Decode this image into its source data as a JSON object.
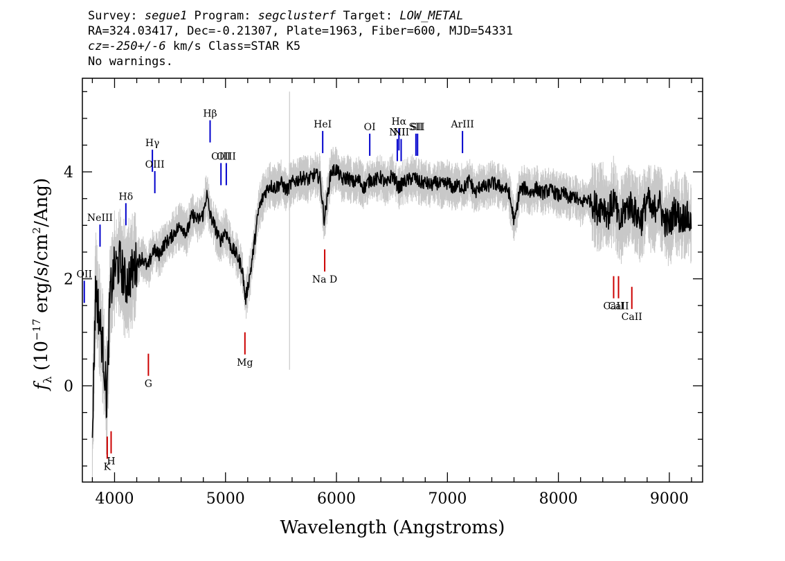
{
  "header": {
    "line1": {
      "survey_label": "Survey: ",
      "survey": "segue1",
      "program_label": " Program: ",
      "program": "segclusterf",
      "target_label": " Target: ",
      "target": "LOW_METAL"
    },
    "line2": "RA=324.03417, Dec=-0.21307, Plate=1963, Fiber=600, MJD=54331",
    "line3": {
      "cz": "cz=-250+/-6",
      "rest": " km/s Class=STAR K5"
    },
    "line4": "No warnings."
  },
  "colors": {
    "flux": "#000000",
    "error_band": "#c8c8c8",
    "emission_line": "#0000cc",
    "absorption_line": "#cc0000"
  },
  "chart_data": {
    "type": "line",
    "xlabel": "Wavelength (Angstroms)",
    "ylabel": "f_λ (10^-17 erg/s/cm²/Ang)",
    "xlim": [
      3710,
      9300
    ],
    "ylim": [
      -1.8,
      5.75
    ],
    "x_ticks": [
      {
        "value": 4000,
        "label": "4000"
      },
      {
        "value": 5000,
        "label": "5000"
      },
      {
        "value": 6000,
        "label": "6000"
      },
      {
        "value": 7000,
        "label": "7000"
      },
      {
        "value": 8000,
        "label": "8000"
      },
      {
        "value": 9000,
        "label": "9000"
      }
    ],
    "y_ticks": [
      {
        "value": 0,
        "label": "0"
      },
      {
        "value": 2,
        "label": "2"
      },
      {
        "value": 4,
        "label": "4"
      }
    ],
    "series": [
      {
        "x": [
          3800,
          3830,
          3860,
          3900,
          3930,
          3960,
          4000,
          4050,
          4100,
          4150,
          4200,
          4250,
          4300,
          4350,
          4400,
          4450,
          4500,
          4550,
          4600,
          4650,
          4700,
          4750,
          4800,
          4830,
          4860,
          4900,
          4950,
          5000,
          5050,
          5100,
          5150,
          5180,
          5230,
          5300,
          5350,
          5400,
          5450,
          5500,
          5550,
          5600,
          5650,
          5700,
          5750,
          5800,
          5850,
          5890,
          5950,
          6000,
          6050,
          6100,
          6150,
          6200,
          6250,
          6300,
          6350,
          6400,
          6450,
          6500,
          6563,
          6600,
          6650,
          6700,
          6750,
          6800,
          6850,
          6900,
          6950,
          7000,
          7050,
          7100,
          7150,
          7200,
          7250,
          7300,
          7350,
          7400,
          7450,
          7500,
          7550,
          7605,
          7650,
          7700,
          7750,
          7800,
          7850,
          7900,
          7950,
          8000,
          8050,
          8100,
          8150,
          8200,
          8250,
          8300,
          8350,
          8400,
          8450,
          8500,
          8550,
          8600,
          8650,
          8700,
          8750,
          8800,
          8850,
          8900,
          8950,
          9000,
          9050,
          9100,
          9150,
          9200
        ],
        "y": [
          -0.9,
          1.9,
          1.3,
          0.6,
          -0.3,
          1.7,
          2.2,
          2.3,
          1.9,
          2.1,
          2.3,
          2.4,
          2.2,
          2.55,
          2.45,
          2.65,
          2.75,
          2.9,
          3.0,
          2.85,
          3.2,
          3.1,
          3.2,
          3.6,
          3.2,
          3.0,
          2.7,
          2.9,
          2.6,
          2.45,
          2.2,
          1.6,
          2.2,
          3.3,
          3.6,
          3.75,
          3.7,
          3.8,
          3.65,
          3.8,
          3.85,
          3.9,
          3.85,
          3.95,
          3.9,
          3.1,
          4.0,
          4.05,
          3.85,
          3.9,
          3.8,
          3.85,
          3.7,
          3.85,
          3.85,
          3.9,
          3.75,
          3.95,
          3.7,
          3.8,
          3.85,
          3.9,
          3.8,
          3.8,
          3.75,
          3.8,
          3.75,
          3.8,
          3.7,
          3.75,
          3.7,
          3.85,
          3.6,
          3.75,
          3.7,
          3.8,
          3.75,
          3.7,
          3.65,
          3.05,
          3.65,
          3.7,
          3.6,
          3.7,
          3.6,
          3.65,
          3.65,
          3.55,
          3.6,
          3.5,
          3.55,
          3.4,
          3.5,
          3.45,
          3.3,
          3.4,
          3.2,
          3.5,
          3.0,
          3.3,
          3.4,
          3.2,
          3.1,
          3.5,
          3.2,
          3.5,
          3.1,
          3.0,
          3.3,
          3.1,
          3.2,
          3.0
        ]
      }
    ],
    "annotations": {
      "emission": [
        {
          "label": "OII",
          "x": 3727,
          "y": 1.55
        },
        {
          "label": "NeIII",
          "x": 3869,
          "y": 2.6
        },
        {
          "label": "Hδ",
          "x": 4102,
          "y": 3.0
        },
        {
          "label": "Hγ",
          "x": 4341,
          "y": 4.0
        },
        {
          "label": "OIII",
          "x": 4363,
          "y": 3.6
        },
        {
          "label": "Hβ",
          "x": 4861,
          "y": 4.55
        },
        {
          "label": "OIII",
          "x": 4959,
          "y": 3.75
        },
        {
          "label": "OIII",
          "x": 5007,
          "y": 3.75
        },
        {
          "label": "HeI",
          "x": 5876,
          "y": 4.35
        },
        {
          "label": "OI",
          "x": 6300,
          "y": 4.3
        },
        {
          "label": "NII",
          "x": 6548,
          "y": 4.2
        },
        {
          "label": "Hα",
          "x": 6563,
          "y": 4.4
        },
        {
          "label": "NII",
          "x": 6583,
          "y": 4.2
        },
        {
          "label": "SII",
          "x": 6716,
          "y": 4.3
        },
        {
          "label": "SII",
          "x": 6731,
          "y": 4.3
        },
        {
          "label": "ArIII",
          "x": 7136,
          "y": 4.35
        }
      ],
      "absorption": [
        {
          "label": "K",
          "x": 3934,
          "y": -0.95
        },
        {
          "label": "H",
          "x": 3969,
          "y": -0.85
        },
        {
          "label": "G",
          "x": 4305,
          "y": 0.6
        },
        {
          "label": "Mg",
          "x": 5175,
          "y": 1.0
        },
        {
          "label": "Na D",
          "x": 5894,
          "y": 2.55
        },
        {
          "label": "CaII",
          "x": 8498,
          "y": 2.05
        },
        {
          "label": "CaII",
          "x": 8542,
          "y": 2.05
        },
        {
          "label": "CaII",
          "x": 8662,
          "y": 1.85
        }
      ]
    }
  }
}
